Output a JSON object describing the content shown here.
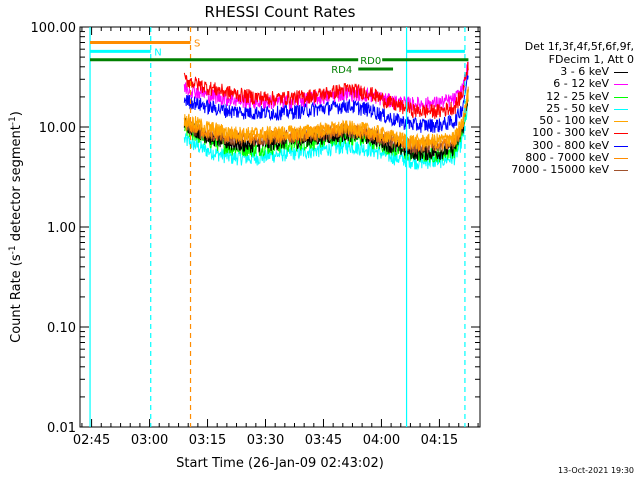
{
  "chart_data": {
    "type": "line",
    "title": "RHESSI Count Rates",
    "xlabel": "Start Time (26-Jan-09 02:43:02)",
    "ylabel_main": "Count Rate (s",
    "ylabel_sup": "-1",
    "ylabel_tail": " detector segment",
    "ylabel_sup2": "-1",
    "ylabel_close": ")",
    "yscale": "log",
    "ylim": [
      0.01,
      100
    ],
    "y_ticks": [
      {
        "v": 100,
        "label": "100.00"
      },
      {
        "v": 10,
        "label": "10.00"
      },
      {
        "v": 1,
        "label": "1.00"
      },
      {
        "v": 0.1,
        "label": "0.10"
      },
      {
        "v": 0.01,
        "label": "0.01"
      }
    ],
    "xlim_minutes": [
      -3.0,
      100.5
    ],
    "x_ticks": [
      {
        "v": 0,
        "label": "02:45"
      },
      {
        "v": 15,
        "label": "03:00"
      },
      {
        "v": 30,
        "label": "03:15"
      },
      {
        "v": 45,
        "label": "03:30"
      },
      {
        "v": 60,
        "label": "03:45"
      },
      {
        "v": 75,
        "label": "04:00"
      },
      {
        "v": 90,
        "label": "04:15"
      }
    ],
    "legend_header": [
      "Det 1f,3f,4f,5f,6f,9f,",
      "FDecim 1, Att 0"
    ],
    "data_start_min": 24.0,
    "data_end_min": 97.5,
    "series": [
      {
        "name": "3 - 6 keV",
        "color": "#000000",
        "x": [
          24,
          30,
          36,
          42,
          48,
          54,
          60,
          66,
          72,
          78,
          84,
          90,
          94,
          96,
          97.5
        ],
        "y": [
          11.0,
          8.0,
          6.8,
          6.6,
          7.0,
          7.4,
          8.0,
          8.6,
          8.0,
          6.4,
          5.5,
          5.6,
          6.2,
          9.5,
          22
        ]
      },
      {
        "name": "6 - 12 keV",
        "color": "#ff00ff",
        "x": [
          24,
          30,
          36,
          42,
          48,
          54,
          60,
          66,
          72,
          78,
          84,
          90,
          94,
          96,
          97.5
        ],
        "y": [
          25,
          21,
          19,
          18,
          18,
          18.5,
          20,
          22,
          21,
          18,
          17,
          17.5,
          19,
          24,
          42
        ]
      },
      {
        "name": "12 - 25 keV",
        "color": "#00ff00",
        "x": [
          24,
          30,
          36,
          42,
          48,
          54,
          60,
          66,
          72,
          78,
          84,
          90,
          94,
          96,
          97.5
        ],
        "y": [
          9.5,
          7.4,
          6.2,
          6.0,
          6.5,
          6.9,
          7.4,
          8.0,
          7.4,
          6.0,
          5.2,
          5.3,
          5.9,
          9.0,
          21
        ]
      },
      {
        "name": "25 - 50 keV",
        "color": "#00ffff",
        "x": [
          24,
          30,
          36,
          42,
          48,
          54,
          60,
          66,
          72,
          78,
          84,
          90,
          94,
          96,
          97.5
        ],
        "y": [
          7.5,
          5.8,
          5.0,
          4.9,
          5.3,
          5.6,
          6.0,
          6.5,
          6.0,
          5.0,
          4.5,
          4.6,
          5.0,
          7.5,
          18
        ]
      },
      {
        "name": "50 - 100 keV",
        "color": "#ffa500",
        "x": [
          24,
          30,
          36,
          42,
          48,
          54,
          60,
          66,
          72,
          78,
          84,
          90,
          94,
          96,
          97.5
        ],
        "y": [
          12,
          10,
          8.8,
          8.6,
          8.8,
          9.0,
          9.5,
          10,
          9.4,
          8.0,
          7.2,
          7.4,
          8.0,
          11,
          24
        ]
      },
      {
        "name": "100 - 300 keV",
        "color": "#ff0000",
        "x": [
          24,
          30,
          36,
          42,
          48,
          54,
          60,
          66,
          72,
          78,
          84,
          90,
          94,
          96,
          97.5
        ],
        "y": [
          30,
          25,
          22,
          20,
          19.5,
          20,
          21.5,
          24,
          22,
          17,
          14.5,
          14.5,
          16,
          22,
          45
        ]
      },
      {
        "name": "300 - 800 keV",
        "color": "#0000ff",
        "x": [
          24,
          30,
          36,
          42,
          48,
          54,
          60,
          66,
          72,
          78,
          84,
          90,
          94,
          96,
          97.5
        ],
        "y": [
          19,
          16,
          14.5,
          14,
          14,
          14.5,
          15.5,
          16.5,
          15,
          12,
          10.5,
          10.5,
          11.5,
          16,
          35
        ]
      },
      {
        "name": "800 - 7000 keV",
        "color": "#ff8c00",
        "x": [
          24,
          30,
          36,
          42,
          48,
          54,
          60,
          66,
          72,
          78,
          84,
          90,
          94,
          96,
          97.5
        ],
        "y": [
          11,
          9.0,
          8.2,
          8.0,
          8.2,
          8.5,
          9.0,
          9.6,
          9.0,
          7.6,
          6.8,
          6.9,
          7.5,
          10.5,
          23
        ]
      },
      {
        "name": "7000 - 15000 keV",
        "color": "#a0522d",
        "x": [
          24,
          30,
          36,
          42,
          48,
          54,
          60,
          66,
          72,
          78,
          84,
          90,
          94,
          96,
          97.5
        ],
        "y": [
          10.5,
          8.6,
          7.8,
          7.6,
          7.9,
          8.2,
          8.7,
          9.3,
          8.6,
          7.2,
          6.4,
          6.5,
          7.1,
          10,
          22
        ]
      }
    ],
    "vertical_markers": [
      {
        "x": -0.4,
        "style": "solid",
        "color": "#00ffff"
      },
      {
        "x": 15.3,
        "style": "dashed",
        "color": "#00ffff"
      },
      {
        "x": 25.6,
        "style": "dashed",
        "color": "#ff8c00"
      },
      {
        "x": 81.5,
        "style": "solid",
        "color": "#00ffff"
      },
      {
        "x": 96.6,
        "style": "dashed",
        "color": "#00ffff"
      }
    ],
    "flag_bars": [
      {
        "label": "S",
        "color": "#ff8c00",
        "x0": -0.4,
        "x1": 25.6,
        "y": 70,
        "label_x": 26.5
      },
      {
        "label": "N",
        "color": "#00ffff",
        "x0": -0.4,
        "x1": 15.3,
        "y": 57,
        "label_x": 16.2
      },
      {
        "label": "",
        "color": "#00ffff",
        "x0": 81.5,
        "x1": 96.6,
        "y": 57,
        "label_x": null
      },
      {
        "label": "RD0",
        "color": "#008000",
        "x0": -0.4,
        "x1": 97.5,
        "y": 47,
        "label_x": 69.5
      },
      {
        "label": "RD4",
        "color": "#008000",
        "x0": 69.0,
        "x1": 78.0,
        "y": 38,
        "label_x": 62.0
      }
    ],
    "grid": false,
    "legend_position": "right"
  },
  "footer": {
    "timestamp": "13-Oct-2021 19:30"
  }
}
